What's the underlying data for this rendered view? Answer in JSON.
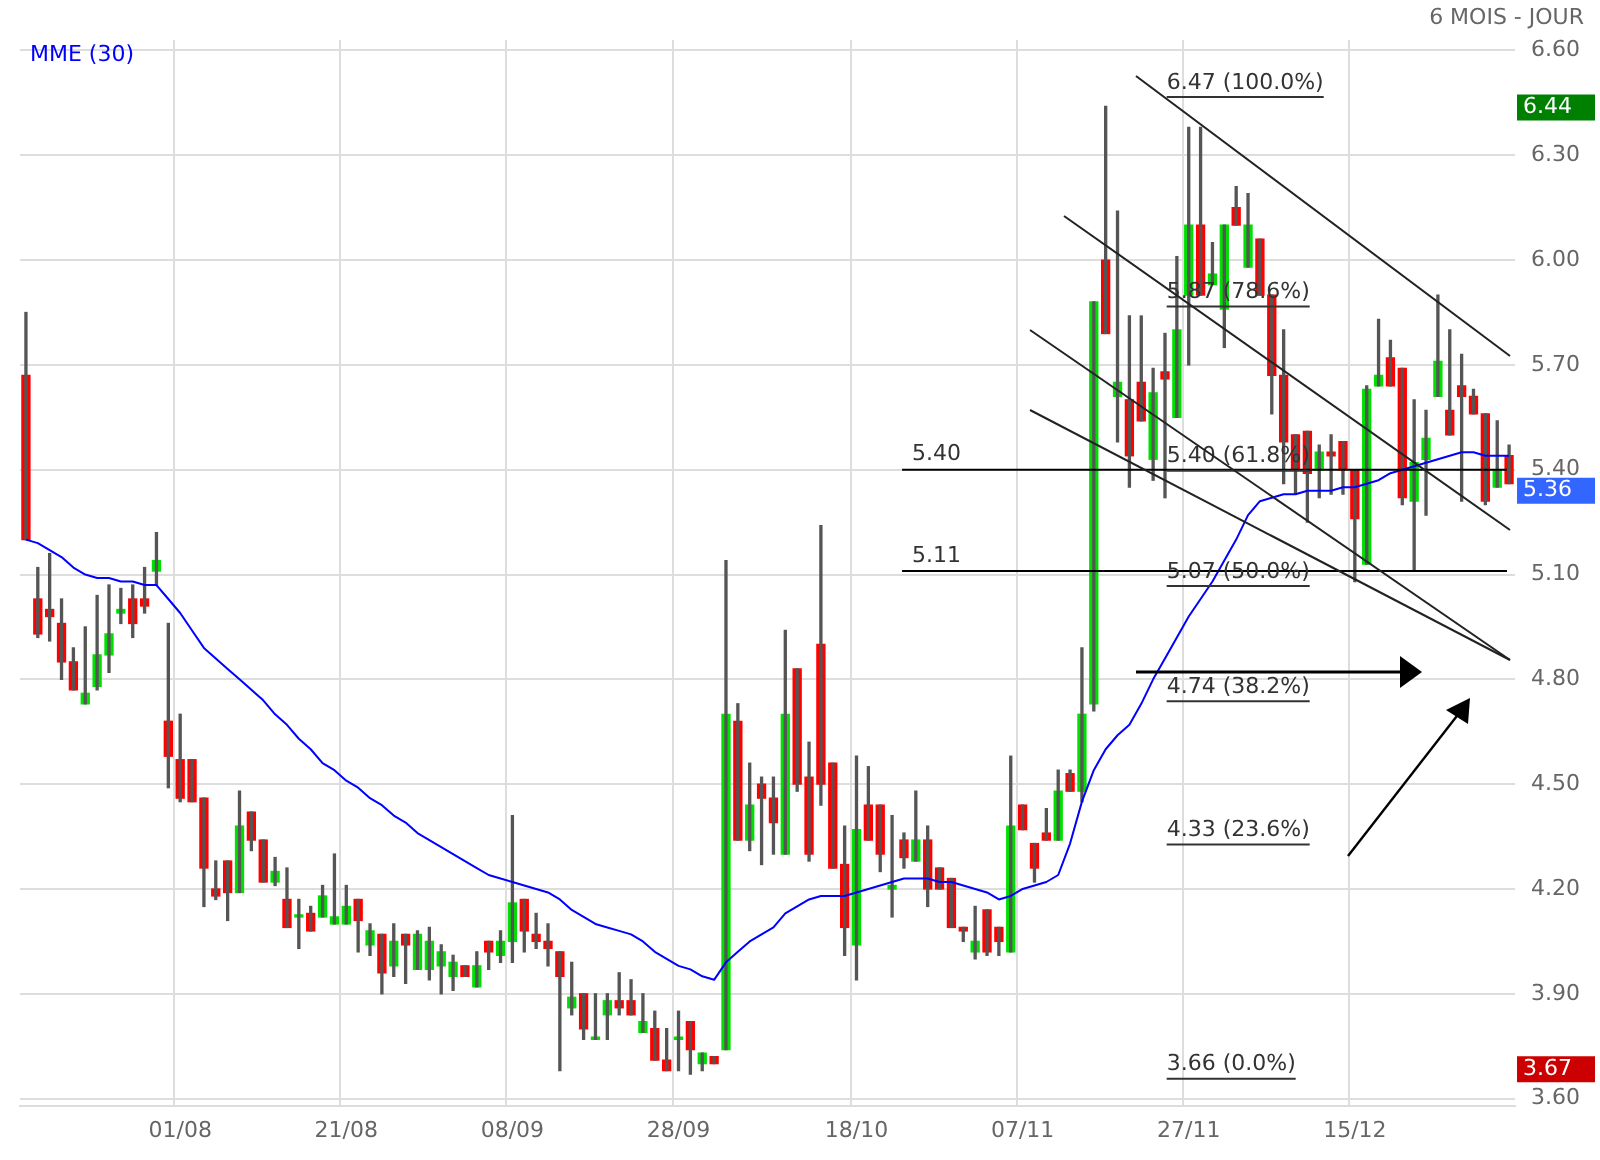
{
  "chart_data": {
    "type": "candlestick",
    "subtitle": "6 MOIS - JOUR",
    "categories": [
      null,
      null,
      null,
      null,
      null,
      null,
      null,
      null,
      null,
      null,
      null,
      null,
      null,
      "01/08",
      null,
      null,
      null,
      null,
      null,
      null,
      null,
      null,
      null,
      null,
      null,
      null,
      null,
      "21/08",
      null,
      null,
      null,
      null,
      null,
      null,
      null,
      null,
      null,
      null,
      null,
      null,
      null,
      "08/09",
      null,
      null,
      null,
      null,
      null,
      null,
      null,
      null,
      null,
      null,
      null,
      null,
      null,
      "28/09",
      null,
      null,
      null,
      null,
      null,
      null,
      null,
      null,
      null,
      null,
      null,
      null,
      null,
      null,
      "18/10",
      null,
      null,
      null,
      null,
      null,
      null,
      null,
      null,
      null,
      null,
      null,
      null,
      null,
      "07/11",
      null,
      null,
      null,
      null,
      null,
      null,
      null,
      null,
      null,
      null,
      null,
      null,
      null,
      "27/11",
      null,
      null,
      null,
      null,
      null,
      null,
      null,
      null,
      null,
      null,
      null,
      null,
      null,
      "15/12",
      null,
      null,
      null,
      null,
      null,
      null,
      null,
      null,
      null,
      null,
      null,
      null,
      null
    ],
    "ohlc": [
      [
        5.67,
        5.85,
        5.2,
        5.2
      ],
      [
        5.03,
        5.12,
        4.92,
        4.93
      ],
      [
        5.0,
        5.16,
        4.91,
        4.98
      ],
      [
        4.96,
        5.03,
        4.8,
        4.85
      ],
      [
        4.85,
        4.89,
        4.77,
        4.77
      ],
      [
        4.73,
        4.95,
        4.73,
        4.76
      ],
      [
        4.78,
        5.04,
        4.77,
        4.87
      ],
      [
        4.87,
        5.07,
        4.82,
        4.93
      ],
      [
        4.99,
        5.06,
        4.96,
        5.0
      ],
      [
        5.03,
        5.07,
        4.92,
        4.96
      ],
      [
        5.03,
        5.12,
        4.99,
        5.01
      ],
      [
        5.11,
        5.22,
        5.07,
        5.14
      ],
      [
        4.68,
        4.96,
        4.49,
        4.58
      ],
      [
        4.57,
        4.7,
        4.45,
        4.46
      ],
      [
        4.57,
        4.57,
        4.45,
        4.45
      ],
      [
        4.46,
        4.46,
        4.15,
        4.26
      ],
      [
        4.2,
        4.28,
        4.17,
        4.18
      ],
      [
        4.28,
        4.28,
        4.11,
        4.19
      ],
      [
        4.19,
        4.48,
        4.19,
        4.38
      ],
      [
        4.42,
        4.42,
        4.31,
        4.34
      ],
      [
        4.34,
        4.34,
        4.22,
        4.22
      ],
      [
        4.22,
        4.29,
        4.21,
        4.25
      ],
      [
        4.17,
        4.26,
        4.09,
        4.09
      ],
      [
        4.12,
        4.17,
        4.03,
        4.12
      ],
      [
        4.13,
        4.15,
        4.08,
        4.08
      ],
      [
        4.12,
        4.21,
        4.12,
        4.18
      ],
      [
        4.1,
        4.3,
        4.1,
        4.12
      ],
      [
        4.1,
        4.21,
        4.1,
        4.15
      ],
      [
        4.17,
        4.17,
        4.02,
        4.11
      ],
      [
        4.04,
        4.1,
        4.01,
        4.08
      ],
      [
        4.07,
        4.07,
        3.9,
        3.96
      ],
      [
        3.98,
        4.1,
        3.95,
        4.05
      ],
      [
        4.07,
        4.07,
        3.93,
        4.04
      ],
      [
        3.97,
        4.08,
        3.97,
        4.07
      ],
      [
        3.97,
        4.09,
        3.94,
        4.05
      ],
      [
        3.98,
        4.04,
        3.9,
        4.02
      ],
      [
        3.95,
        4.01,
        3.91,
        3.99
      ],
      [
        3.98,
        3.98,
        3.95,
        3.95
      ],
      [
        3.92,
        4.02,
        3.92,
        3.98
      ],
      [
        4.05,
        4.05,
        3.97,
        4.02
      ],
      [
        4.01,
        4.08,
        3.99,
        4.05
      ],
      [
        4.05,
        4.41,
        3.99,
        4.16
      ],
      [
        4.17,
        4.17,
        4.02,
        4.08
      ],
      [
        4.07,
        4.13,
        4.03,
        4.05
      ],
      [
        4.05,
        4.1,
        3.98,
        4.03
      ],
      [
        4.02,
        4.02,
        3.68,
        3.95
      ],
      [
        3.86,
        3.99,
        3.84,
        3.89
      ],
      [
        3.9,
        3.9,
        3.77,
        3.8
      ],
      [
        3.77,
        3.9,
        3.77,
        3.77
      ],
      [
        3.84,
        3.9,
        3.77,
        3.88
      ],
      [
        3.88,
        3.96,
        3.84,
        3.86
      ],
      [
        3.88,
        3.94,
        3.84,
        3.84
      ],
      [
        3.79,
        3.9,
        3.79,
        3.82
      ],
      [
        3.8,
        3.85,
        3.71,
        3.71
      ],
      [
        3.71,
        3.8,
        3.68,
        3.68
      ],
      [
        3.77,
        3.85,
        3.68,
        3.77
      ],
      [
        3.82,
        3.82,
        3.67,
        3.74
      ],
      [
        3.7,
        3.73,
        3.68,
        3.73
      ],
      [
        3.72,
        3.72,
        3.7,
        3.7
      ],
      [
        3.74,
        5.14,
        3.74,
        4.7
      ],
      [
        4.68,
        4.73,
        4.34,
        4.34
      ],
      [
        4.34,
        4.56,
        4.31,
        4.44
      ],
      [
        4.5,
        4.52,
        4.27,
        4.46
      ],
      [
        4.46,
        4.52,
        4.3,
        4.39
      ],
      [
        4.3,
        4.94,
        4.3,
        4.7
      ],
      [
        4.83,
        4.83,
        4.48,
        4.5
      ],
      [
        4.52,
        4.62,
        4.28,
        4.3
      ],
      [
        4.9,
        5.24,
        4.44,
        4.5
      ],
      [
        4.56,
        4.56,
        4.26,
        4.26
      ],
      [
        4.27,
        4.38,
        4.01,
        4.09
      ],
      [
        4.04,
        4.58,
        3.94,
        4.37
      ],
      [
        4.44,
        4.55,
        4.34,
        4.34
      ],
      [
        4.44,
        4.44,
        4.25,
        4.3
      ],
      [
        4.2,
        4.41,
        4.12,
        4.21
      ],
      [
        4.34,
        4.36,
        4.26,
        4.29
      ],
      [
        4.28,
        4.48,
        4.28,
        4.34
      ],
      [
        4.34,
        4.38,
        4.15,
        4.2
      ],
      [
        4.26,
        4.26,
        4.2,
        4.2
      ],
      [
        4.23,
        4.23,
        4.09,
        4.09
      ],
      [
        4.09,
        4.09,
        4.05,
        4.08
      ],
      [
        4.02,
        4.15,
        4.0,
        4.05
      ],
      [
        4.14,
        4.14,
        4.01,
        4.02
      ],
      [
        4.09,
        4.09,
        4.01,
        4.05
      ],
      [
        4.02,
        4.58,
        4.02,
        4.38
      ],
      [
        4.44,
        4.44,
        4.37,
        4.37
      ],
      [
        4.33,
        4.33,
        4.22,
        4.26
      ],
      [
        4.36,
        4.43,
        4.34,
        4.34
      ],
      [
        4.34,
        4.54,
        4.34,
        4.48
      ],
      [
        4.53,
        4.54,
        4.48,
        4.48
      ],
      [
        4.48,
        4.89,
        4.45,
        4.7
      ],
      [
        4.73,
        5.88,
        4.71,
        5.88
      ],
      [
        6.0,
        6.44,
        5.79,
        5.79
      ],
      [
        5.61,
        6.14,
        5.48,
        5.65
      ],
      [
        5.6,
        5.84,
        5.35,
        5.44
      ],
      [
        5.65,
        5.84,
        5.54,
        5.54
      ],
      [
        5.43,
        5.69,
        5.37,
        5.62
      ],
      [
        5.68,
        5.79,
        5.32,
        5.66
      ],
      [
        5.55,
        6.01,
        5.55,
        5.8
      ],
      [
        5.9,
        6.38,
        5.7,
        6.1
      ],
      [
        6.1,
        6.38,
        5.9,
        5.9
      ],
      [
        5.93,
        6.05,
        5.93,
        5.96
      ],
      [
        5.86,
        6.1,
        5.75,
        6.1
      ],
      [
        6.15,
        6.21,
        6.1,
        6.1
      ],
      [
        5.98,
        6.19,
        5.98,
        6.1
      ],
      [
        6.06,
        6.06,
        5.9,
        5.9
      ],
      [
        5.9,
        5.9,
        5.56,
        5.67
      ],
      [
        5.67,
        5.8,
        5.36,
        5.48
      ],
      [
        5.5,
        5.5,
        5.33,
        5.4
      ],
      [
        5.51,
        5.51,
        5.25,
        5.39
      ],
      [
        5.4,
        5.47,
        5.32,
        5.45
      ],
      [
        5.45,
        5.5,
        5.33,
        5.44
      ],
      [
        5.48,
        5.48,
        5.33,
        5.4
      ],
      [
        5.4,
        5.4,
        5.08,
        5.26
      ],
      [
        5.13,
        5.64,
        5.13,
        5.63
      ],
      [
        5.64,
        5.83,
        5.64,
        5.67
      ],
      [
        5.72,
        5.77,
        5.64,
        5.64
      ],
      [
        5.69,
        5.69,
        5.3,
        5.32
      ],
      [
        5.31,
        5.6,
        5.11,
        5.42
      ],
      [
        5.43,
        5.57,
        5.27,
        5.49
      ],
      [
        5.61,
        5.9,
        5.61,
        5.71
      ],
      [
        5.57,
        5.8,
        5.5,
        5.5
      ],
      [
        5.64,
        5.73,
        5.31,
        5.61
      ],
      [
        5.61,
        5.63,
        5.56,
        5.56
      ],
      [
        5.56,
        5.56,
        5.3,
        5.31
      ],
      [
        5.35,
        5.54,
        5.35,
        5.4
      ],
      [
        5.44,
        5.47,
        5.36,
        5.36
      ]
    ],
    "colors": [
      "#ff0000",
      "#ff0000",
      "#ff0000",
      "#ff0000",
      "#ff0000",
      "#00e000",
      "#00e000",
      "#00e000",
      "#00e000",
      "#ff0000",
      "#ff0000",
      "#00e000",
      "#ff0000",
      "#ff0000",
      "#ff0000",
      "#ff0000",
      "#ff0000",
      "#ff0000",
      "#00e000",
      "#ff0000",
      "#ff0000",
      "#00e000",
      "#ff0000",
      "#00e000",
      "#ff0000",
      "#00e000",
      "#00e000",
      "#00e000",
      "#ff0000",
      "#00e000",
      "#ff0000",
      "#00e000",
      "#ff0000",
      "#00e000",
      "#00e000",
      "#00e000",
      "#00e000",
      "#ff0000",
      "#00e000",
      "#ff0000",
      "#00e000",
      "#00e000",
      "#ff0000",
      "#ff0000",
      "#ff0000",
      "#ff0000",
      "#00e000",
      "#ff0000",
      "#00e000",
      "#00e000",
      "#ff0000",
      "#ff0000",
      "#00e000",
      "#ff0000",
      "#ff0000",
      "#00e000",
      "#ff0000",
      "#00e000",
      "#ff0000",
      "#00e000",
      "#ff0000",
      "#00e000",
      "#ff0000",
      "#ff0000",
      "#00e000",
      "#ff0000",
      "#ff0000",
      "#ff0000",
      "#ff0000",
      "#ff0000",
      "#00e000",
      "#ff0000",
      "#ff0000",
      "#00e000",
      "#ff0000",
      "#00e000",
      "#ff0000",
      "#ff0000",
      "#ff0000",
      "#ff0000",
      "#00e000",
      "#ff0000",
      "#ff0000",
      "#00e000",
      "#ff0000",
      "#ff0000",
      "#ff0000",
      "#00e000",
      "#ff0000",
      "#00e000",
      "#00e000",
      "#ff0000",
      "#00e000",
      "#ff0000",
      "#ff0000",
      "#00e000",
      "#ff0000",
      "#00e000",
      "#00e000",
      "#ff0000",
      "#00e000",
      "#00e000",
      "#ff0000",
      "#00e000",
      "#ff0000",
      "#ff0000",
      "#ff0000",
      "#ff0000",
      "#ff0000",
      "#00e000",
      "#ff0000",
      "#ff0000",
      "#ff0000",
      "#00e000",
      "#00e000",
      "#ff0000",
      "#ff0000",
      "#00e000",
      "#00e000",
      "#00e000",
      "#ff0000",
      "#ff0000",
      "#ff0000",
      "#ff0000",
      "#00e000",
      "#ff0000"
    ],
    "series": [
      {
        "name": "MME (30)",
        "type": "line",
        "color": "#0000ff",
        "values": [
          5.2,
          5.19,
          5.17,
          5.15,
          5.12,
          5.1,
          5.09,
          5.09,
          5.08,
          5.08,
          5.07,
          5.07,
          5.03,
          4.99,
          4.94,
          4.89,
          4.86,
          4.83,
          4.8,
          4.77,
          4.74,
          4.7,
          4.67,
          4.63,
          4.6,
          4.56,
          4.54,
          4.51,
          4.49,
          4.46,
          4.44,
          4.41,
          4.39,
          4.36,
          4.34,
          4.32,
          4.3,
          4.28,
          4.26,
          4.24,
          4.23,
          4.22,
          4.21,
          4.2,
          4.19,
          4.17,
          4.14,
          4.12,
          4.1,
          4.09,
          4.08,
          4.07,
          4.05,
          4.02,
          4.0,
          3.98,
          3.97,
          3.95,
          3.94,
          3.99,
          4.02,
          4.05,
          4.07,
          4.09,
          4.13,
          4.15,
          4.17,
          4.18,
          4.18,
          4.18,
          4.19,
          4.2,
          4.21,
          4.22,
          4.23,
          4.23,
          4.23,
          4.22,
          4.22,
          4.21,
          4.2,
          4.19,
          4.17,
          4.18,
          4.2,
          4.21,
          4.22,
          4.24,
          4.33,
          4.45,
          4.54,
          4.6,
          4.64,
          4.67,
          4.73,
          4.8,
          4.86,
          4.92,
          4.98,
          5.03,
          5.08,
          5.14,
          5.2,
          5.27,
          5.31,
          5.32,
          5.33,
          5.33,
          5.34,
          5.34,
          5.34,
          5.35,
          5.35,
          5.36,
          5.37,
          5.39,
          5.4,
          5.41,
          5.42,
          5.43,
          5.44,
          5.45,
          5.45,
          5.44,
          5.44,
          5.44
        ]
      }
    ],
    "ylim": [
      3.58,
      6.63
    ],
    "yticks": [
      {
        "value": 3.6,
        "label": "3.60"
      },
      {
        "value": 3.9,
        "label": "3.90"
      },
      {
        "value": 4.2,
        "label": "4.20"
      },
      {
        "value": 4.5,
        "label": "4.50"
      },
      {
        "value": 4.8,
        "label": "4.80"
      },
      {
        "value": 5.1,
        "label": "5.10"
      },
      {
        "value": 5.4,
        "label": "5.40"
      },
      {
        "value": 5.7,
        "label": "5.70"
      },
      {
        "value": 6.0,
        "label": "6.00"
      },
      {
        "value": 6.3,
        "label": "6.30"
      },
      {
        "value": 6.6,
        "label": "6.60"
      }
    ],
    "ref_lines": [
      {
        "axis": "y",
        "value": 5.4,
        "label": "5.40",
        "color": "#000000"
      },
      {
        "axis": "y",
        "value": 5.11,
        "label": "5.11",
        "color": "#000000"
      },
      {
        "axis": "y",
        "value": 6.47,
        "label": "6.47 (100.0%)"
      },
      {
        "axis": "y",
        "value": 5.87,
        "label": "5.87 (78.6%)"
      },
      {
        "axis": "y",
        "value": 5.4,
        "label": "5.40 (61.8%)"
      },
      {
        "axis": "y",
        "value": 5.07,
        "label": "5.07 (50.0%)"
      },
      {
        "axis": "y",
        "value": 4.74,
        "label": "4.74 (38.2%)"
      },
      {
        "axis": "y",
        "value": 4.33,
        "label": "4.33 (23.6%)"
      },
      {
        "axis": "y",
        "value": 3.66,
        "label": "3.66 (0.0%)"
      }
    ],
    "annotations": [
      "6.44",
      "5.36",
      "3.67"
    ],
    "grid": true,
    "legend": "top left",
    "marker": "none",
    "line_style": "solid"
  }
}
